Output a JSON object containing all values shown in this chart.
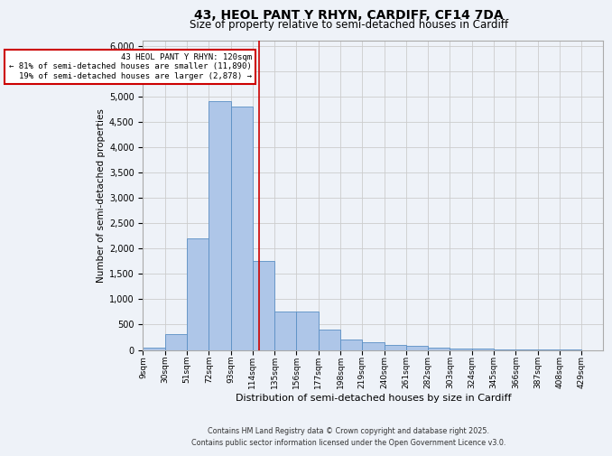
{
  "title1": "43, HEOL PANT Y RHYN, CARDIFF, CF14 7DA",
  "title2": "Size of property relative to semi-detached houses in Cardiff",
  "xlabel": "Distribution of semi-detached houses by size in Cardiff",
  "ylabel": "Number of semi-detached properties",
  "annotation_line1": "43 HEOL PANT Y RHYN: 120sqm",
  "annotation_line2": "← 81% of semi-detached houses are smaller (11,890)",
  "annotation_line3": "19% of semi-detached houses are larger (2,878) →",
  "property_size": 120,
  "bins": [
    9,
    30,
    51,
    72,
    93,
    114,
    135,
    156,
    177,
    198,
    219,
    240,
    261,
    282,
    303,
    324,
    345,
    366,
    387,
    408,
    429
  ],
  "bin_labels": [
    "9sqm",
    "30sqm",
    "51sqm",
    "72sqm",
    "93sqm",
    "114sqm",
    "135sqm",
    "156sqm",
    "177sqm",
    "198sqm",
    "219sqm",
    "240sqm",
    "261sqm",
    "282sqm",
    "303sqm",
    "324sqm",
    "345sqm",
    "366sqm",
    "387sqm",
    "408sqm",
    "429sqm"
  ],
  "counts": [
    50,
    310,
    2200,
    4900,
    4800,
    1750,
    750,
    750,
    400,
    200,
    150,
    100,
    75,
    50,
    30,
    20,
    15,
    10,
    5,
    3,
    0
  ],
  "bar_color": "#aec6e8",
  "bar_edge_color": "#5a8fc4",
  "vline_color": "#cc0000",
  "vline_x": 120,
  "ylim": [
    0,
    6100
  ],
  "yticks": [
    0,
    500,
    1000,
    1500,
    2000,
    2500,
    3000,
    3500,
    4000,
    4500,
    5000,
    5500,
    6000
  ],
  "grid_color": "#cccccc",
  "bg_color": "#eef2f8",
  "footer": "Contains HM Land Registry data © Crown copyright and database right 2025.\nContains public sector information licensed under the Open Government Licence v3.0."
}
